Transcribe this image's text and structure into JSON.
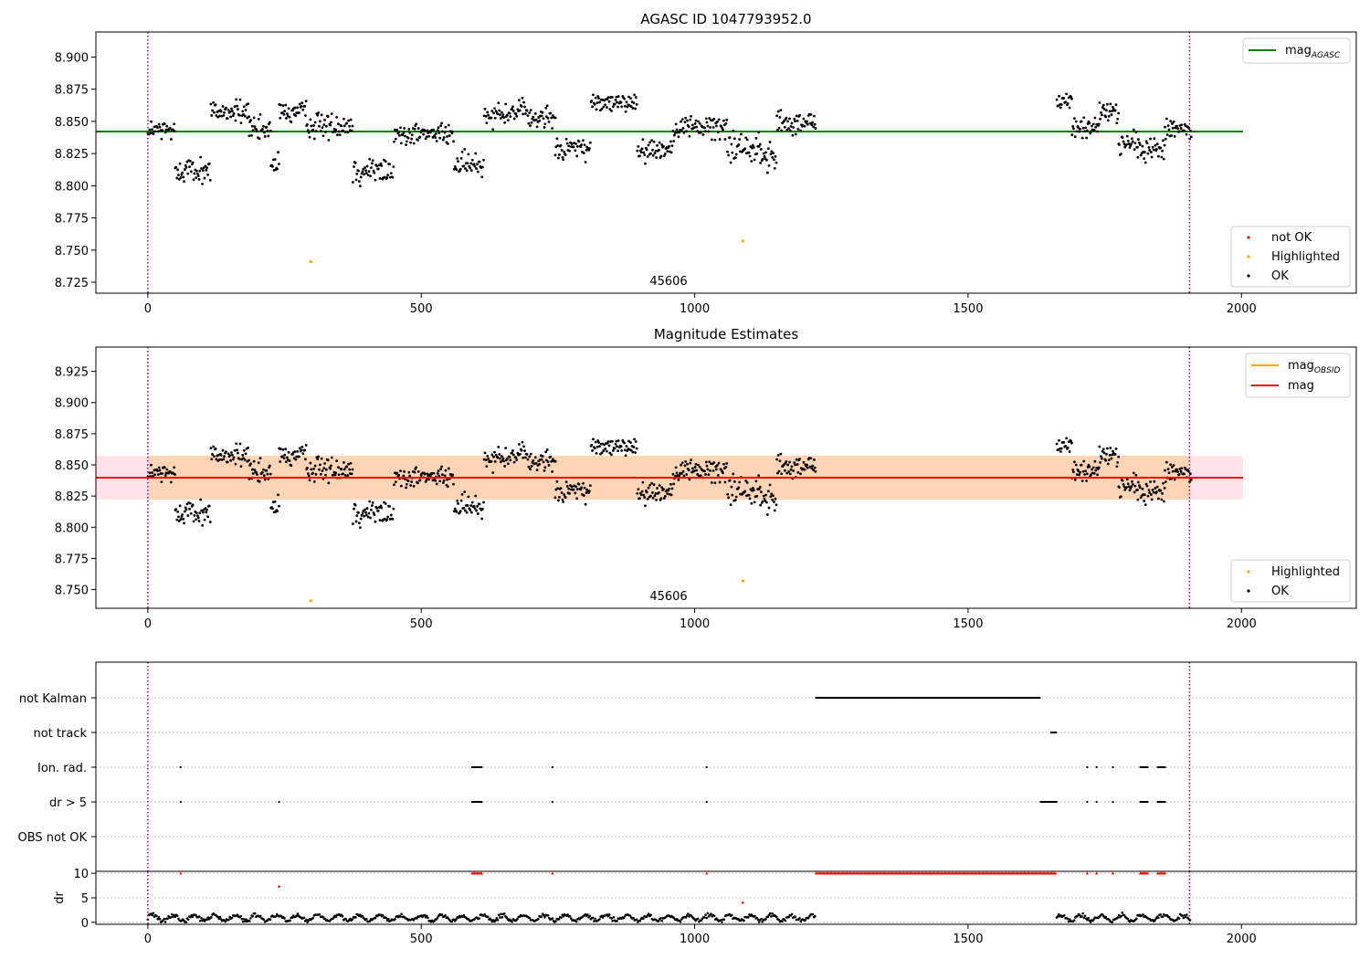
{
  "chart_data": [
    {
      "type": "scatter",
      "title": "AGASC ID 1047793952.0",
      "xlim": [
        -95,
        2210
      ],
      "ylim": [
        8.7165,
        8.9195
      ],
      "xticks": [
        0,
        500,
        1000,
        1500,
        2000
      ],
      "yticks": [
        8.725,
        8.75,
        8.775,
        8.8,
        8.825,
        8.85,
        8.875,
        8.9
      ],
      "annotation": "45606",
      "vlines": [
        0,
        1905
      ],
      "mag_agasc": 8.8375,
      "mag_agasc_xrange": [
        -95,
        2000
      ],
      "highlighted_points": [
        [
          298,
          8.741
        ],
        [
          1088,
          8.757
        ]
      ],
      "legend_lines": [
        {
          "label": "mag",
          "sub": "AGASC",
          "color": "#008000"
        }
      ],
      "legend_markers": [
        {
          "label": "not OK",
          "color": "#ff0000"
        },
        {
          "label": "Highlighted",
          "color": "#ffa500"
        },
        {
          "label": "OK",
          "color": "#000000"
        }
      ],
      "ok_segments": [
        [
          0,
          50,
          8.843,
          0.007
        ],
        [
          50,
          115,
          8.812,
          0.008
        ],
        [
          115,
          185,
          8.858,
          0.007
        ],
        [
          185,
          225,
          8.843,
          0.008
        ],
        [
          225,
          240,
          8.816,
          0.007
        ],
        [
          240,
          290,
          8.857,
          0.007
        ],
        [
          290,
          375,
          8.847,
          0.008
        ],
        [
          375,
          450,
          8.812,
          0.009
        ],
        [
          450,
          560,
          8.84,
          0.007
        ],
        [
          560,
          615,
          8.816,
          0.008
        ],
        [
          615,
          700,
          8.857,
          0.008
        ],
        [
          700,
          745,
          8.852,
          0.008
        ],
        [
          745,
          810,
          8.829,
          0.007
        ],
        [
          810,
          895,
          8.864,
          0.006
        ],
        [
          895,
          960,
          8.828,
          0.007
        ],
        [
          960,
          1060,
          8.846,
          0.008
        ],
        [
          1060,
          1120,
          8.83,
          0.01
        ],
        [
          1120,
          1150,
          8.823,
          0.008
        ],
        [
          1150,
          1222,
          8.849,
          0.008
        ],
        [
          1662,
          1690,
          8.866,
          0.006
        ],
        [
          1690,
          1740,
          8.845,
          0.007
        ],
        [
          1740,
          1775,
          8.857,
          0.007
        ],
        [
          1775,
          1810,
          8.833,
          0.007
        ],
        [
          1810,
          1860,
          8.828,
          0.008
        ],
        [
          1860,
          1908,
          8.843,
          0.007
        ]
      ]
    },
    {
      "type": "scatter",
      "title": "Magnitude Estimates",
      "xlim": [
        -95,
        2210
      ],
      "ylim": [
        8.735,
        8.9445
      ],
      "xticks": [
        0,
        500,
        1000,
        1500,
        2000
      ],
      "yticks": [
        8.75,
        8.775,
        8.8,
        8.825,
        8.85,
        8.875,
        8.9,
        8.925
      ],
      "annotation": "45606",
      "vlines": [
        0,
        1905
      ],
      "mag": 8.841,
      "mag_xrange": [
        -95,
        2000
      ],
      "mag_band": [
        8.823,
        8.859
      ],
      "mag_obsid": 8.841,
      "mag_obsid_xrange": [
        0,
        1905
      ],
      "highlighted_points": [
        [
          298,
          8.741
        ],
        [
          1088,
          8.757
        ]
      ],
      "legend_lines": [
        {
          "label": "mag",
          "sub": "OBSID",
          "color": "#ffa500"
        },
        {
          "label": "mag",
          "sub": "",
          "color": "#ff0000"
        }
      ],
      "legend_markers": [
        {
          "label": "Highlighted",
          "color": "#ffa500"
        },
        {
          "label": "OK",
          "color": "#000000"
        }
      ]
    },
    {
      "type": "scatter",
      "title": "",
      "xlim": [
        -95,
        2210
      ],
      "xticks": [
        0,
        500,
        1000,
        1500,
        2000
      ],
      "vlines": [
        0,
        1905
      ],
      "flag_rows": [
        {
          "label": "not Kalman",
          "segments": [
            [
              1222,
              1633
            ]
          ],
          "points": []
        },
        {
          "label": "not track",
          "segments": [
            [
              1652,
              1662
            ]
          ],
          "points": []
        },
        {
          "label": "Ion. rad.",
          "segments": [
            [
              593,
              612
            ],
            [
              1815,
              1830
            ],
            [
              1847,
              1862
            ]
          ],
          "points": [
            60,
            740,
            1022,
            1718,
            1735,
            1765
          ]
        },
        {
          "label": "dr > 5",
          "segments": [
            [
              593,
              612
            ],
            [
              1633,
              1662
            ],
            [
              1815,
              1830
            ],
            [
              1847,
              1862
            ]
          ],
          "points": [
            60,
            240,
            740,
            1022,
            1718,
            1735,
            1765
          ]
        },
        {
          "label": "OBS not OK",
          "segments": [],
          "points": []
        }
      ]
    },
    {
      "type": "scatter",
      "ylabel": "dr",
      "xlim": [
        -95,
        2210
      ],
      "ylim": [
        -0.4,
        10.4
      ],
      "xticks": [
        0,
        500,
        1000,
        1500,
        2000
      ],
      "yticks": [
        0,
        5,
        10
      ],
      "vlines": [
        0,
        1905
      ],
      "capped_value": 10,
      "capped_segments": [
        [
          593,
          612
        ],
        [
          1222,
          1662
        ],
        [
          1815,
          1830
        ],
        [
          1847,
          1862
        ]
      ],
      "capped_points": [
        60,
        740,
        1022,
        1718,
        1735,
        1765
      ],
      "other_red_points": [
        [
          240,
          7.3
        ],
        [
          1088,
          4.0
        ]
      ],
      "black_ranges": [
        [
          0,
          1222
        ],
        [
          1662,
          1908
        ]
      ]
    }
  ]
}
